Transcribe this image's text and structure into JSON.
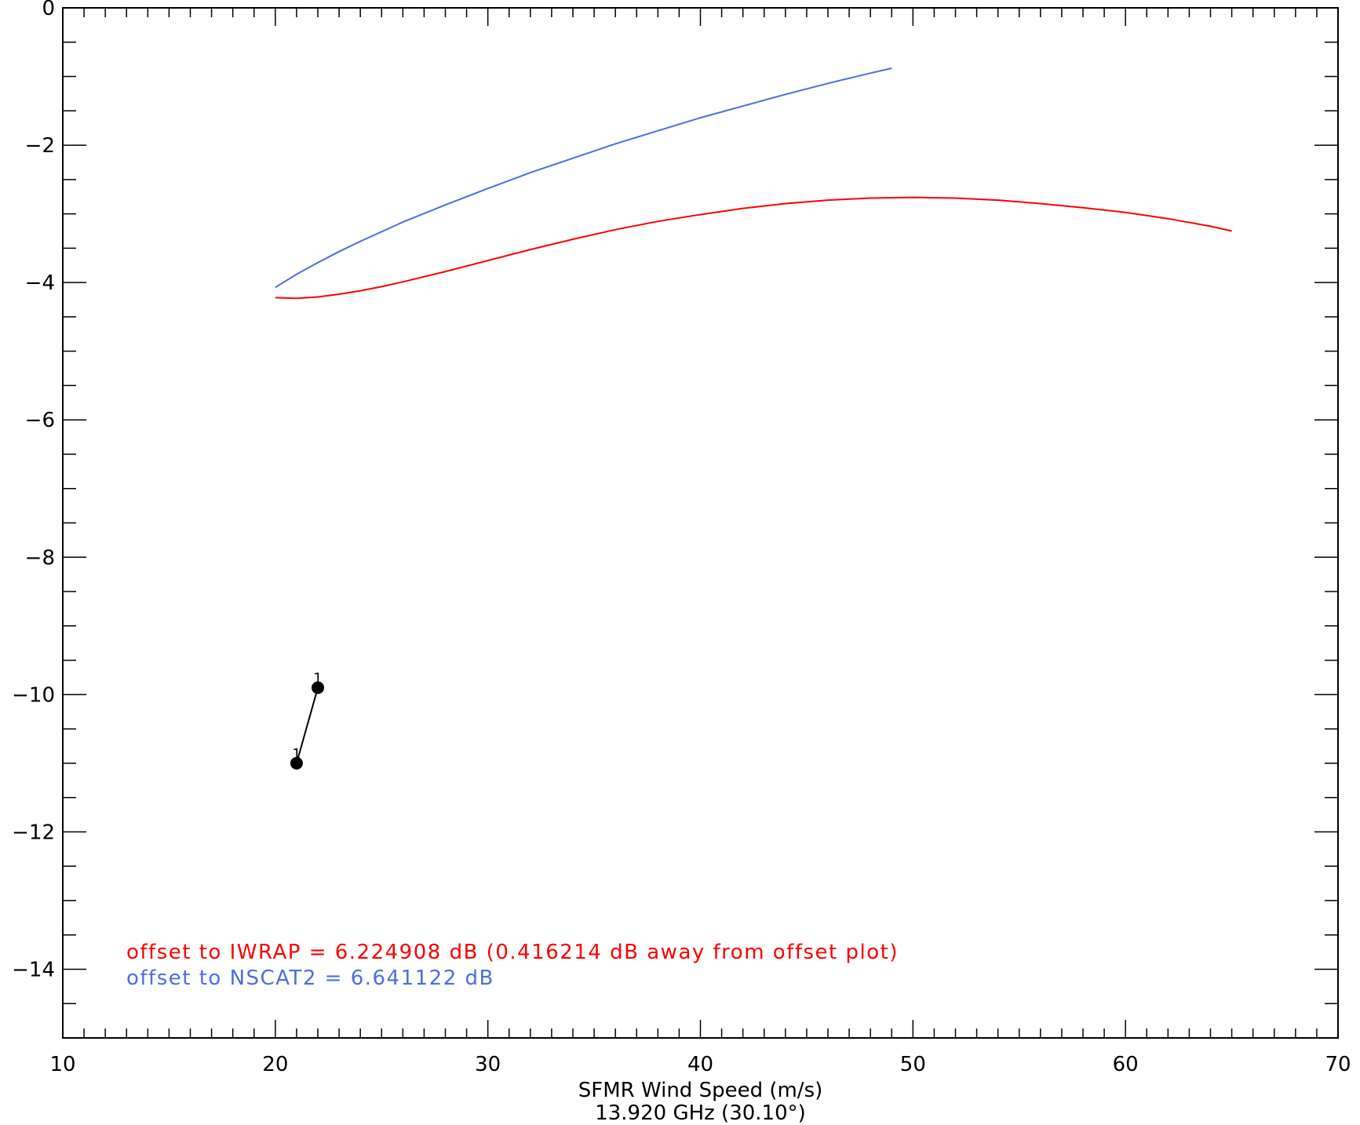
{
  "chart_data": {
    "type": "line",
    "xlabel": "SFMR Wind Speed (m/s)",
    "xlabel2": "13.920 GHz (30.10°)",
    "ylabel": "",
    "xlim": [
      10,
      70
    ],
    "ylim": [
      -15,
      0
    ],
    "x_ticks": [
      10,
      20,
      30,
      40,
      50,
      60,
      70
    ],
    "y_ticks": [
      0,
      -2,
      -4,
      -6,
      -8,
      -10,
      -12,
      -14
    ],
    "x_tick_labels": [
      "10",
      "20",
      "30",
      "40",
      "50",
      "60",
      "70"
    ],
    "y_tick_labels": [
      "0",
      "−2",
      "−4",
      "−6",
      "−8",
      "−10",
      "−12",
      "−14"
    ],
    "x_minor_step": 1,
    "y_minor_step": 0.5,
    "grid": false,
    "series": [
      {
        "color": "#ff0000",
        "x": [
          20,
          21,
          22,
          23,
          24,
          25,
          26,
          28,
          30,
          32,
          34,
          36,
          38,
          40,
          42,
          44,
          46,
          48,
          50,
          52,
          54,
          56,
          58,
          60,
          62,
          64,
          65
        ],
        "y": [
          -4.22,
          -4.23,
          -4.21,
          -4.17,
          -4.12,
          -4.06,
          -3.99,
          -3.84,
          -3.68,
          -3.52,
          -3.37,
          -3.23,
          -3.11,
          -3.01,
          -2.92,
          -2.85,
          -2.8,
          -2.77,
          -2.76,
          -2.77,
          -2.8,
          -2.85,
          -2.91,
          -2.98,
          -3.07,
          -3.18,
          -3.25
        ]
      },
      {
        "color": "#4a6fe0",
        "x": [
          20,
          21,
          22,
          23,
          24,
          26,
          28,
          30,
          32,
          34,
          36,
          38,
          40,
          42,
          44,
          46,
          48,
          49
        ],
        "y": [
          -4.07,
          -3.88,
          -3.71,
          -3.55,
          -3.4,
          -3.12,
          -2.87,
          -2.63,
          -2.4,
          -2.19,
          -1.98,
          -1.79,
          -1.6,
          -1.43,
          -1.26,
          -1.1,
          -0.95,
          -0.88
        ]
      },
      {
        "color": "#000000",
        "marker": "circle",
        "x": [
          21,
          22
        ],
        "y": [
          -11.0,
          -9.9
        ],
        "point_labels": [
          "1",
          "1"
        ]
      }
    ],
    "annotations": [
      {
        "text": "offset to IWRAP = 6.224908 dB (0.416214 dB away from offset plot)",
        "color": "#ff0000"
      },
      {
        "text": "offset to NSCAT2 = 6.641122 dB",
        "color": "#4a6fe0"
      }
    ]
  }
}
